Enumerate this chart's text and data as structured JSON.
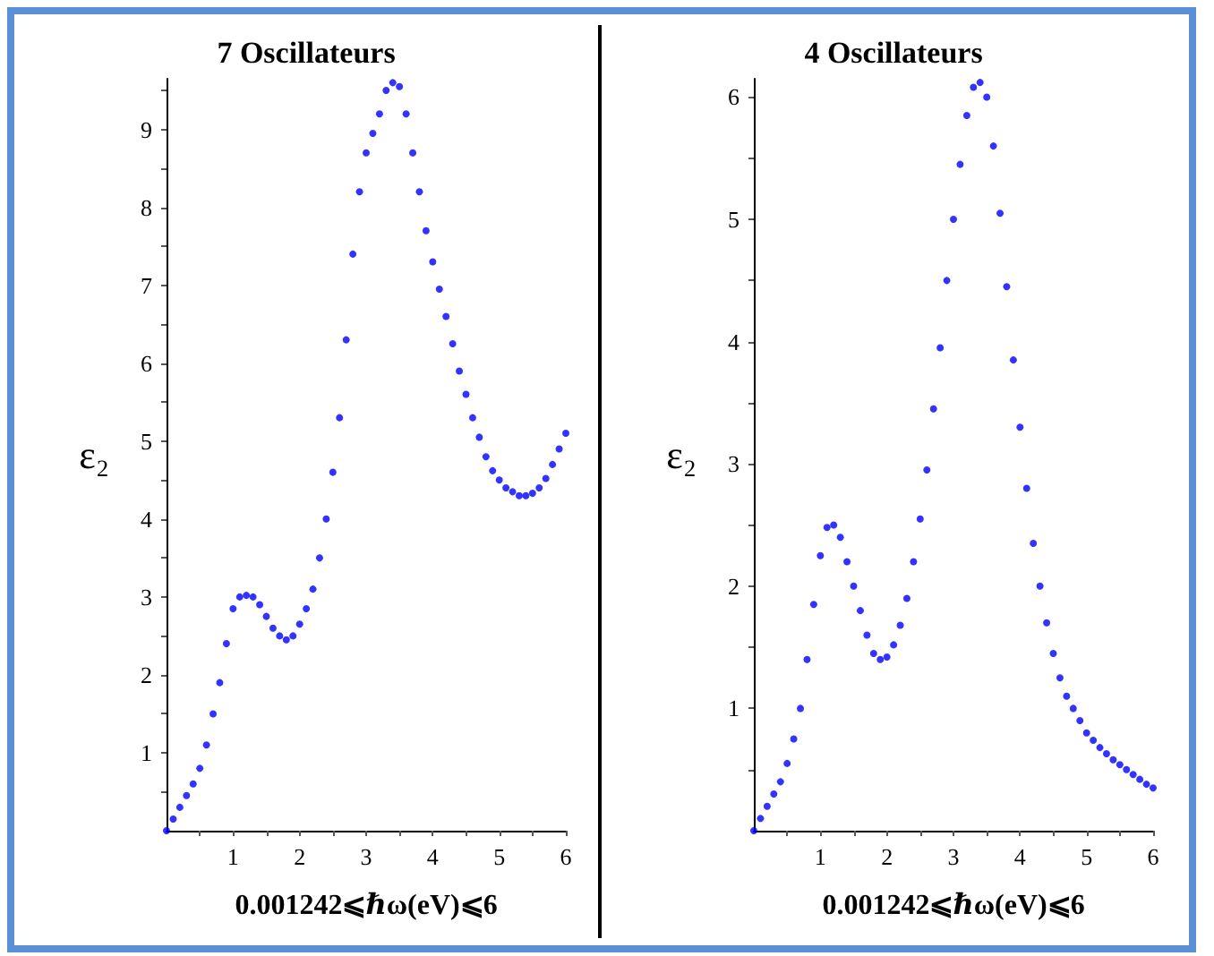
{
  "chart_data": [
    {
      "type": "scatter",
      "title": "7 Oscillateurs",
      "xlabel": "0.001242⩽ℏω(eV)⩽6",
      "ylabel": "ε₂",
      "marker": "circle",
      "xlim": [
        0,
        6
      ],
      "ylim": [
        0,
        9.65
      ],
      "xticks": [
        {
          "value": 0.5,
          "label": null
        },
        1,
        {
          "value": 1.5,
          "label": null
        },
        2,
        {
          "value": 2.5,
          "label": null
        },
        3,
        {
          "value": 3.5,
          "label": null
        },
        4,
        {
          "value": 4.5,
          "label": null
        },
        5,
        {
          "value": 5.5,
          "label": null
        },
        6
      ],
      "yticks": [
        {
          "value": 0.5,
          "label": null
        },
        1,
        {
          "value": 1.5,
          "label": null
        },
        2,
        {
          "value": 2.5,
          "label": null
        },
        3,
        {
          "value": 3.5,
          "label": null
        },
        4,
        {
          "value": 4.5,
          "label": null
        },
        5,
        {
          "value": 5.5,
          "label": null
        },
        6,
        {
          "value": 6.5,
          "label": null
        },
        7,
        {
          "value": 7.5,
          "label": null
        },
        8,
        {
          "value": 8.5,
          "label": null
        },
        9,
        {
          "value": 9.5,
          "label": null
        }
      ],
      "series": [
        {
          "color": "#0000ff",
          "x": [
            0,
            0.1,
            0.2,
            0.3,
            0.4,
            0.5,
            0.6,
            0.7,
            0.8,
            0.9,
            1.0,
            1.1,
            1.2,
            1.3,
            1.4,
            1.5,
            1.6,
            1.7,
            1.8,
            1.9,
            2.0,
            2.1,
            2.2,
            2.3,
            2.4,
            2.5,
            2.6,
            2.7,
            2.8,
            2.9,
            3.0,
            3.1,
            3.2,
            3.3,
            3.4,
            3.5,
            3.6,
            3.7,
            3.8,
            3.9,
            4.0,
            4.1,
            4.2,
            4.3,
            4.4,
            4.5,
            4.6,
            4.7,
            4.8,
            4.9,
            5.0,
            5.1,
            5.2,
            5.3,
            5.4,
            5.5,
            5.6,
            5.7,
            5.8,
            5.9,
            6.0
          ],
          "values": [
            0,
            0.15,
            0.3,
            0.45,
            0.6,
            0.8,
            1.1,
            1.5,
            1.9,
            2.4,
            2.85,
            3.0,
            3.02,
            3.0,
            2.9,
            2.75,
            2.6,
            2.5,
            2.45,
            2.5,
            2.65,
            2.85,
            3.1,
            3.5,
            4.0,
            4.6,
            5.3,
            6.3,
            7.4,
            8.2,
            8.7,
            8.95,
            9.2,
            9.5,
            9.6,
            9.55,
            9.2,
            8.7,
            8.2,
            7.7,
            7.3,
            6.95,
            6.6,
            6.25,
            5.9,
            5.6,
            5.3,
            5.05,
            4.8,
            4.62,
            4.5,
            4.4,
            4.35,
            4.3,
            4.3,
            4.33,
            4.4,
            4.52,
            4.7,
            4.9,
            5.1
          ]
        }
      ]
    },
    {
      "type": "scatter",
      "title": "4 Oscillateurs",
      "xlabel": "0.001242⩽ℏω(eV)⩽6",
      "ylabel": "ε₂",
      "marker": "circle",
      "xlim": [
        0,
        6
      ],
      "ylim": [
        0,
        6.15
      ],
      "xticks": [
        {
          "value": 0.5,
          "label": null
        },
        1,
        {
          "value": 1.5,
          "label": null
        },
        2,
        {
          "value": 2.5,
          "label": null
        },
        3,
        {
          "value": 3.5,
          "label": null
        },
        4,
        {
          "value": 4.5,
          "label": null
        },
        5,
        {
          "value": 5.5,
          "label": null
        },
        6
      ],
      "yticks": [
        {
          "value": 0.5,
          "label": null
        },
        1,
        {
          "value": 1.5,
          "label": null
        },
        2,
        {
          "value": 2.5,
          "label": null
        },
        3,
        {
          "value": 3.5,
          "label": null
        },
        4,
        {
          "value": 4.5,
          "label": null
        },
        5,
        {
          "value": 5.5,
          "label": null
        },
        6
      ],
      "series": [
        {
          "color": "#0000ff",
          "x": [
            0,
            0.1,
            0.2,
            0.3,
            0.4,
            0.5,
            0.6,
            0.7,
            0.8,
            0.9,
            1.0,
            1.1,
            1.2,
            1.3,
            1.4,
            1.5,
            1.6,
            1.7,
            1.8,
            1.9,
            2.0,
            2.1,
            2.2,
            2.3,
            2.4,
            2.5,
            2.6,
            2.7,
            2.8,
            2.9,
            3.0,
            3.1,
            3.2,
            3.3,
            3.4,
            3.5,
            3.6,
            3.7,
            3.8,
            3.9,
            4.0,
            4.1,
            4.2,
            4.3,
            4.4,
            4.5,
            4.6,
            4.7,
            4.8,
            4.9,
            5.0,
            5.1,
            5.2,
            5.3,
            5.4,
            5.5,
            5.6,
            5.7,
            5.8,
            5.9,
            6.0
          ],
          "values": [
            0,
            0.1,
            0.2,
            0.3,
            0.4,
            0.55,
            0.75,
            1.0,
            1.4,
            1.85,
            2.25,
            2.48,
            2.5,
            2.4,
            2.2,
            2.0,
            1.8,
            1.6,
            1.45,
            1.4,
            1.42,
            1.52,
            1.68,
            1.9,
            2.2,
            2.55,
            2.95,
            3.45,
            3.95,
            4.5,
            5.0,
            5.45,
            5.85,
            6.08,
            6.12,
            6.0,
            5.6,
            5.05,
            4.45,
            3.85,
            3.3,
            2.8,
            2.35,
            2.0,
            1.7,
            1.45,
            1.25,
            1.1,
            1.0,
            0.9,
            0.8,
            0.74,
            0.68,
            0.63,
            0.58,
            0.54,
            0.5,
            0.46,
            0.42,
            0.38,
            0.35
          ]
        }
      ]
    }
  ]
}
